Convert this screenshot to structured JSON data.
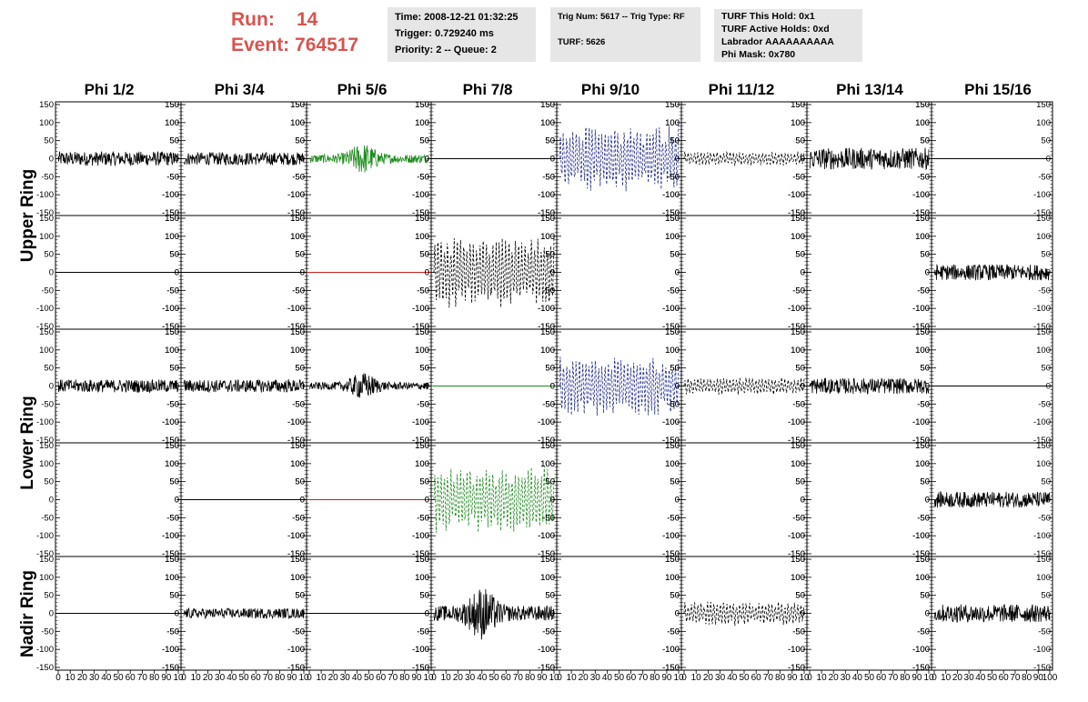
{
  "header": {
    "run_label": "Run:",
    "run_value": "14",
    "event_label": "Event:",
    "event_value": "764517"
  },
  "info_time": {
    "time": "Time: 2008-12-21 01:32:25",
    "trigger": "Trigger: 0.729240 ms",
    "priority": "Priority: 2 -- Queue: 2"
  },
  "info_trig": {
    "trig": "Trig Num: 5617 -- Trig Type: RF",
    "turf": "TURF: 5626"
  },
  "info_turf": {
    "hold": "TURF This Hold: 0x1",
    "active": "TURF Active Holds: 0xd",
    "labrador": "Labrador AAAAAAAAAA",
    "phimask": "Phi Mask: 0x780"
  },
  "chart_data": {
    "type": "line",
    "columns": [
      "Phi 1/2",
      "Phi 3/4",
      "Phi 5/6",
      "Phi 7/8",
      "Phi 9/10",
      "Phi 11/12",
      "Phi 13/14",
      "Phi 15/16"
    ],
    "ring_labels": [
      "Upper Ring",
      "Lower Ring",
      "Nadir Ring"
    ],
    "ylim": [
      -150,
      150
    ],
    "xlim": [
      0,
      100
    ],
    "yticks": [
      -150,
      -100,
      -50,
      0,
      50,
      100,
      150
    ],
    "xticks": [
      "0",
      "10",
      "20",
      "30",
      "40",
      "50",
      "60",
      "70",
      "80",
      "90",
      "10"
    ],
    "xticks_last": [
      "0",
      "10",
      "20",
      "30",
      "40",
      "50",
      "60",
      "70",
      "80",
      "90",
      "100"
    ],
    "colors": {
      "black": "#000000",
      "green": "#1e8c1e",
      "blue": "#1f2a8a",
      "red": "#c8201e"
    },
    "panels": [
      [
        {
          "style": "solid",
          "color": "black",
          "amp": 20
        },
        {
          "style": "solid",
          "color": "black",
          "amp": 18
        },
        {
          "style": "solid",
          "color": "green",
          "amp": 35,
          "burst": 45
        },
        {
          "style": "flat",
          "color": "black",
          "amp": 0
        },
        {
          "style": "dashed",
          "color": "blue",
          "amp": 95
        },
        {
          "style": "dashed",
          "color": "black",
          "amp": 20
        },
        {
          "style": "solid",
          "color": "black",
          "amp": 30
        },
        {
          "style": "flat",
          "color": "black",
          "amp": 0
        }
      ],
      [
        {
          "style": "flat",
          "color": "black",
          "amp": 0
        },
        {
          "style": "flat",
          "color": "black",
          "amp": 0
        },
        {
          "style": "flat",
          "color": "red",
          "amp": 0
        },
        {
          "style": "dashed",
          "color": "black",
          "amp": 100
        },
        {
          "style": "none",
          "color": "black",
          "amp": 0
        },
        {
          "style": "none",
          "color": "black",
          "amp": 0
        },
        {
          "style": "none",
          "color": "black",
          "amp": 0
        },
        {
          "style": "solid",
          "color": "black",
          "amp": 22
        }
      ],
      [
        {
          "style": "solid",
          "color": "black",
          "amp": 18
        },
        {
          "style": "solid",
          "color": "black",
          "amp": 18
        },
        {
          "style": "solid",
          "color": "black",
          "amp": 30,
          "burst": 45
        },
        {
          "style": "flat",
          "color": "green",
          "amp": 0
        },
        {
          "style": "dashed",
          "color": "blue",
          "amp": 85
        },
        {
          "style": "dashed",
          "color": "black",
          "amp": 25
        },
        {
          "style": "solid",
          "color": "black",
          "amp": 22
        },
        {
          "style": "flat",
          "color": "black",
          "amp": 0
        }
      ],
      [
        {
          "style": "none",
          "color": "black",
          "amp": 0
        },
        {
          "style": "flat",
          "color": "black",
          "amp": 0
        },
        {
          "style": "flat",
          "color": "red",
          "amp": 0
        },
        {
          "style": "dashed",
          "color": "green",
          "amp": 95
        },
        {
          "style": "none",
          "color": "black",
          "amp": 0
        },
        {
          "style": "none",
          "color": "black",
          "amp": 0
        },
        {
          "style": "none",
          "color": "black",
          "amp": 0
        },
        {
          "style": "solid",
          "color": "black",
          "amp": 22
        }
      ],
      [
        {
          "style": "flat",
          "color": "black",
          "amp": 0
        },
        {
          "style": "solid",
          "color": "black",
          "amp": 14
        },
        {
          "style": "flat",
          "color": "black",
          "amp": 0
        },
        {
          "style": "solid",
          "color": "black",
          "amp": 60,
          "burst": 40
        },
        {
          "style": "none",
          "color": "black",
          "amp": 0
        },
        {
          "style": "dashed",
          "color": "black",
          "amp": 35
        },
        {
          "style": "none",
          "color": "black",
          "amp": 0
        },
        {
          "style": "solid",
          "color": "black",
          "amp": 25
        }
      ]
    ]
  }
}
